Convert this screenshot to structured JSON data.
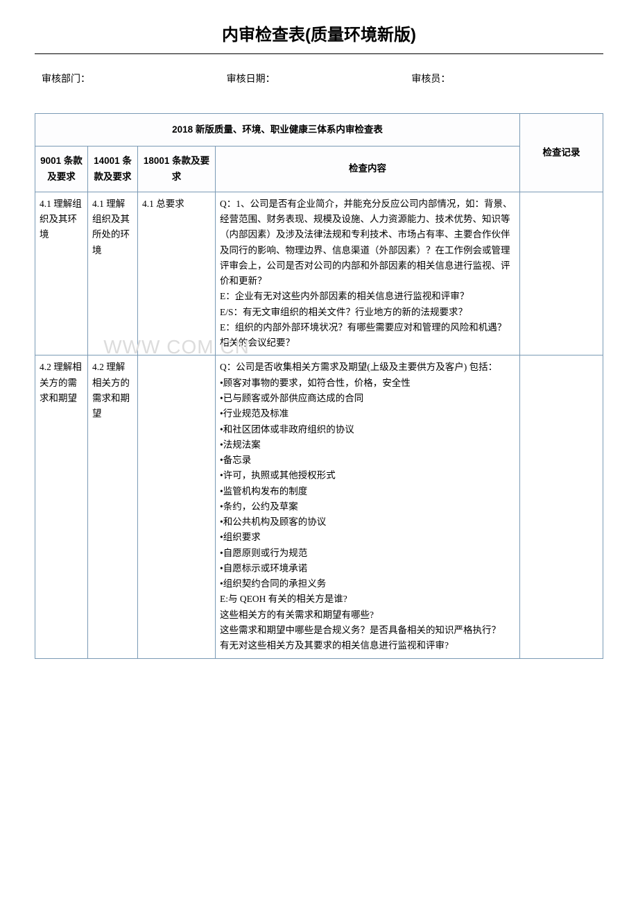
{
  "page": {
    "title": "内审检查表(质量环境新版)",
    "meta": {
      "dept_label": "审核部门：",
      "date_label": "审核日期：",
      "auditor_label": "审核员："
    }
  },
  "table": {
    "title": "2018 新版质量、环境、职业健康三体系内审检查表",
    "headers": {
      "col1": "9001 条款及要求",
      "col2": "14001 条款及要求",
      "col3": "18001 条款及要求",
      "col4": "检查内容",
      "col5": "检查记录"
    },
    "rows": [
      {
        "c1": "4.1 理解组织及其环境",
        "c2": "4.1 理解组织及其所处的环境",
        "c3": "4.1 总要求",
        "c4": "Q：1、公司是否有企业简介，并能充分反应公司内部情况，如：背景、经营范围、财务表现、规模及设施、人力资源能力、技术优势、知识等（内部因素）及涉及法律法规和专利技术、市场占有率、主要合作伙伴及同行的影响、物理边界、信息渠道（外部因素）？在工作例会或管理评审会上，公司是否对公司的内部和外部因素的相关信息进行监视、评价和更新？\nE：企业有无对这些内外部因素的相关信息进行监视和评审？\nE/S：有无文审组织的相关文件？行业地方的新的法规要求？\nE：组织的内部外部环境状况？有哪些需要应对和管理的风险和机遇？相关的会议纪要？",
        "c5": ""
      },
      {
        "c1": "4.2 理解相关方的需求和期望",
        "c2": "4.2 理解相关方的需求和期望",
        "c3": "",
        "c4": "Q：公司是否收集相关方需求及期望(上级及主要供方及客户) 包括：\n•顾客对事物的要求，如符合性，价格，安全性\n•已与顾客或外部供应商达成的合同\n•行业规范及标准\n•和社区团体或非政府组织的协议\n•法规法案\n•备忘录\n•许可，执照或其他授权形式\n•监管机构发布的制度\n•条约，公约及草案\n•和公共机构及顾客的协议\n•组织要求\n•自愿原则或行为规范\n•自愿标示或环境承诺\n•组织契约合同的承担义务\nE:与 QEOH 有关的相关方是谁?\n这些相关方的有关需求和期望有哪些?\n这些需求和期望中哪些是合规义务？是否具备相关的知识严格执行？\n有无对这些相关方及其要求的相关信息进行监视和评审?",
        "c5": ""
      }
    ]
  },
  "watermark": "WWW                    COM  CN",
  "colors": {
    "border": "#7a9ab5",
    "text": "#000000",
    "watermark": "#dcdcdc"
  }
}
